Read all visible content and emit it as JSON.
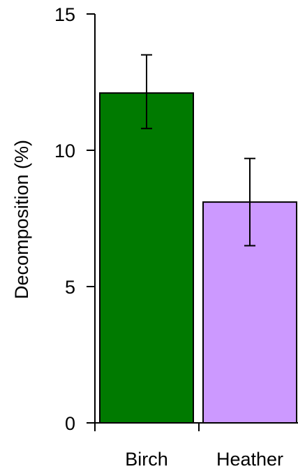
{
  "chart_data": {
    "type": "bar",
    "title": "",
    "xlabel": "",
    "ylabel": "Decomposition  (%)",
    "categories": [
      "Birch",
      "Heather"
    ],
    "values": [
      12.1,
      8.1
    ],
    "error_bars": {
      "lower": [
        10.8,
        6.5
      ],
      "upper": [
        13.5,
        9.7
      ]
    },
    "bar_colors": [
      "#007a00",
      "#cc99ff"
    ],
    "ylim": [
      0,
      15
    ],
    "yticks": [
      0,
      5,
      10,
      15
    ],
    "ytick_labels": [
      "0",
      "5",
      "10",
      "15"
    ],
    "grid": false,
    "legend": "none"
  }
}
